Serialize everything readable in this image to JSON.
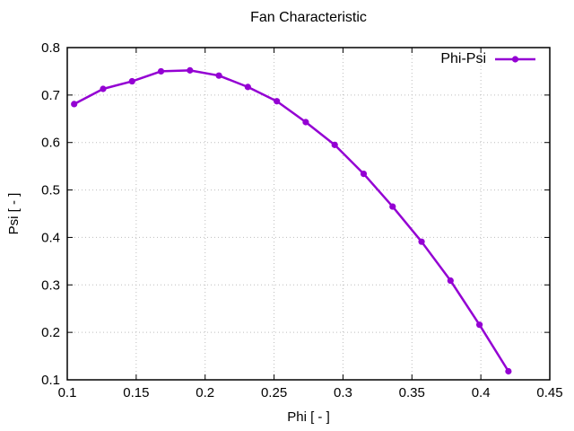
{
  "window": {
    "background": "#ffffff",
    "text_color": "#000000",
    "grid_color": "#bdbdbd"
  },
  "chart_data": {
    "type": "line",
    "title": "Fan Characteristic",
    "xlabel": "Phi [ - ]",
    "ylabel": "Psi [ - ]",
    "xlim": [
      0.1,
      0.45
    ],
    "ylim": [
      0.1,
      0.8
    ],
    "xticks": [
      0.1,
      0.15,
      0.2,
      0.25,
      0.3,
      0.35,
      0.4,
      0.45
    ],
    "yticks": [
      0.1,
      0.2,
      0.3,
      0.4,
      0.5,
      0.6,
      0.7,
      0.8
    ],
    "grid": true,
    "grid_style": "dotted",
    "legend_position": "top-right-inside",
    "series": [
      {
        "name": "Phi-Psi",
        "color": "#9400d3",
        "marker": "filled-circle",
        "line_width": 2.5,
        "x": [
          0.105,
          0.126,
          0.147,
          0.168,
          0.189,
          0.21,
          0.231,
          0.252,
          0.273,
          0.294,
          0.315,
          0.336,
          0.357,
          0.378,
          0.399,
          0.42
        ],
        "y": [
          0.681,
          0.713,
          0.729,
          0.75,
          0.752,
          0.741,
          0.717,
          0.687,
          0.643,
          0.595,
          0.534,
          0.465,
          0.391,
          0.309,
          0.216,
          0.118
        ]
      }
    ]
  }
}
